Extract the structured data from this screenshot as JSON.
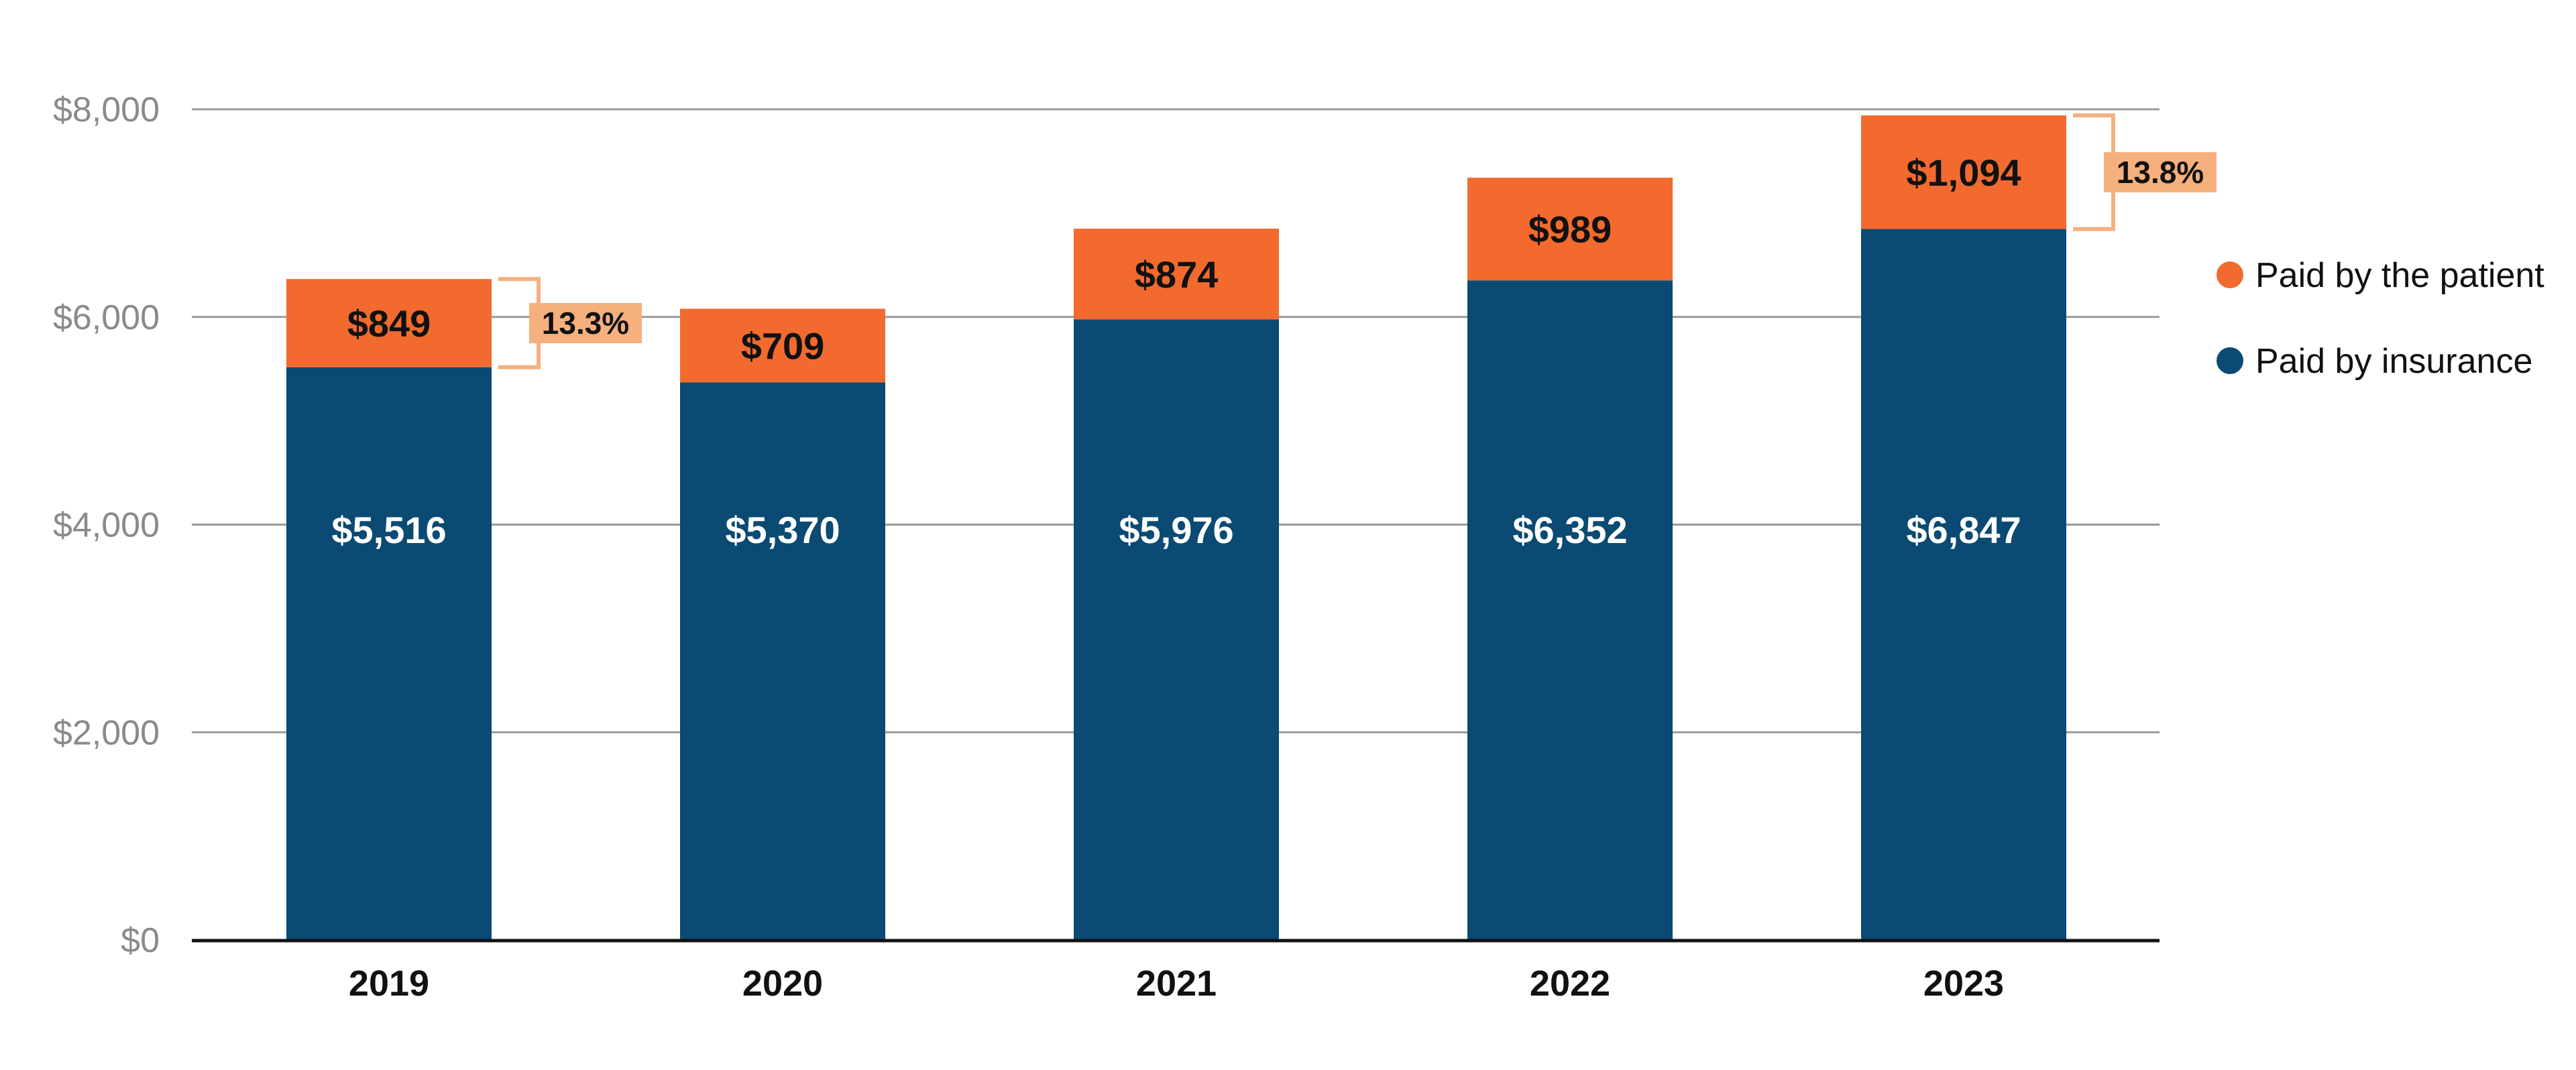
{
  "chart_data": {
    "type": "bar",
    "stacked": true,
    "categories": [
      "2019",
      "2020",
      "2021",
      "2022",
      "2023"
    ],
    "series": [
      {
        "name": "Paid by insurance",
        "values": [
          5516,
          5370,
          5976,
          6352,
          6847
        ],
        "labels": [
          "$5,516",
          "$5,370",
          "$5,976",
          "$6,352",
          "$6,847"
        ],
        "color": "#0a4a73",
        "label_color": "#ffffff"
      },
      {
        "name": "Paid by the patient",
        "values": [
          849,
          709,
          874,
          989,
          1094
        ],
        "labels": [
          "$849",
          "$709",
          "$874",
          "$989",
          "$1,094"
        ],
        "color": "#f26a2e",
        "label_color": "#111111"
      }
    ],
    "annotations": [
      {
        "category": "2019",
        "text": "13.3%"
      },
      {
        "category": "2023",
        "text": "13.8%"
      }
    ],
    "annotation_color": "#f5b07e",
    "ylim": [
      0,
      8000
    ],
    "yticks": [
      0,
      2000,
      4000,
      6000,
      8000
    ],
    "ytick_labels": [
      "$0",
      "$2,000",
      "$4,000",
      "$6,000",
      "$8,000"
    ],
    "grid": true,
    "grid_color": "#999999",
    "legend": {
      "placement": "right",
      "order": [
        "Paid by the patient",
        "Paid by insurance"
      ]
    }
  }
}
